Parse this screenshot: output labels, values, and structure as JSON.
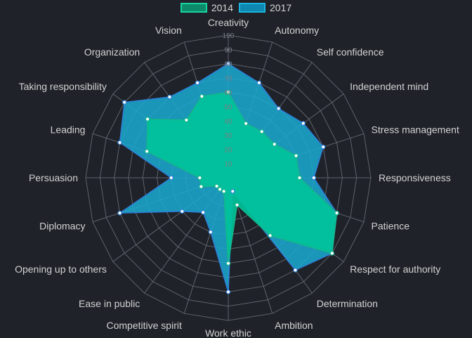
{
  "chart_data": {
    "type": "radar",
    "title": "",
    "axes": [
      "Creativity",
      "Autonomy",
      "Self confidence",
      "Independent mind",
      "Stress management",
      "Responsiveness",
      "Patience",
      "Respect for authority",
      "Determination",
      "Ambition",
      "Work ethic",
      "Competitive spirit",
      "Ease in public",
      "Opening up to others",
      "Diplomacy",
      "Persuasion",
      "Leading",
      "Taking responsibility",
      "Organization",
      "Vision"
    ],
    "scale": {
      "min": 0,
      "max": 100,
      "step": 10,
      "tick_labels": [
        "10",
        "20",
        "30",
        "40",
        "50",
        "60",
        "70",
        "80",
        "90",
        "100"
      ]
    },
    "legend_position": "top",
    "series": [
      {
        "name": "2017",
        "fill": "#1aaad1",
        "stroke": "#2d7fd8",
        "point": "#2d7fd8",
        "values": [
          80,
          70,
          60,
          65,
          70,
          60,
          80,
          90,
          80,
          10,
          80,
          40,
          30,
          40,
          80,
          40,
          80,
          90,
          70,
          70
        ]
      },
      {
        "name": "2014",
        "fill": "#00c29a",
        "stroke": "#14b88a",
        "point": "#14b88a",
        "values": [
          60,
          40,
          40,
          40,
          50,
          50,
          80,
          90,
          50,
          20,
          60,
          10,
          10,
          10,
          20,
          20,
          60,
          70,
          50,
          60
        ]
      }
    ],
    "grid": true
  },
  "legend": [
    {
      "label": "2014",
      "fill": "#0d8a6a",
      "border": "#19d49e"
    },
    {
      "label": "2017",
      "fill": "#0e87b1",
      "border": "#1bb4de"
    }
  ]
}
